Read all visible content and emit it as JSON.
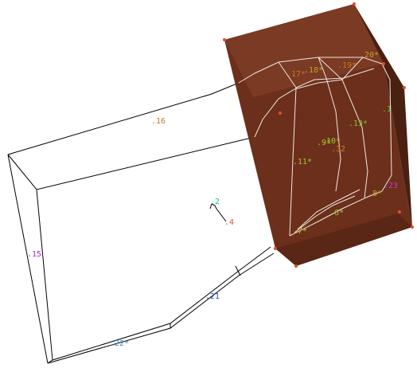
{
  "labels": [
    {
      "id": "l16",
      "text": ".16",
      "color": "#c8781e"
    },
    {
      "id": "l17",
      "text": ".17*",
      "color": "#c8781e"
    },
    {
      "id": "l18",
      "text": ".18*",
      "color": "#c8a020"
    },
    {
      "id": "l19",
      "text": ".19*",
      "color": "#c8781e"
    },
    {
      "id": "l20",
      "text": ".20*",
      "color": "#c8a020"
    },
    {
      "id": "l1",
      "text": ".1",
      "color": "#50c828"
    },
    {
      "id": "l13",
      "text": ".13*",
      "color": "#78c828"
    },
    {
      "id": "l9",
      "text": ".9*",
      "color": "#a0c828"
    },
    {
      "id": "l10",
      "text": ".10*",
      "color": "#a0c828"
    },
    {
      "id": "l32",
      "text": ".32",
      "color": "#e0782a"
    },
    {
      "id": "l11",
      "text": ".11*",
      "color": "#a0c828"
    },
    {
      "id": "l23",
      "text": ".23",
      "color": "#c83cc8"
    },
    {
      "id": "l8",
      "text": ".8*",
      "color": "#c8a020"
    },
    {
      "id": "l6",
      "text": ".6*",
      "color": "#a0c828"
    },
    {
      "id": "l7",
      "text": ".7*",
      "color": "#c8c828"
    },
    {
      "id": "l2",
      "text": ".2",
      "color": "#28b4a0"
    },
    {
      "id": "l4",
      "text": ".4",
      "color": "#e05028"
    },
    {
      "id": "l15",
      "text": ".15",
      "color": "#b428c8"
    },
    {
      "id": "l21",
      "text": ".21",
      "color": "#2850c8"
    },
    {
      "id": "l22",
      "text": ".22*",
      "color": "#3c8cc8"
    }
  ],
  "colors": {
    "box_front": "#6b2f1c",
    "box_right": "#4a2012",
    "box_top": "#7a3a24",
    "vertex": "#e0502a",
    "wire": "#000000",
    "inner_wire": "#f0e8e0"
  }
}
